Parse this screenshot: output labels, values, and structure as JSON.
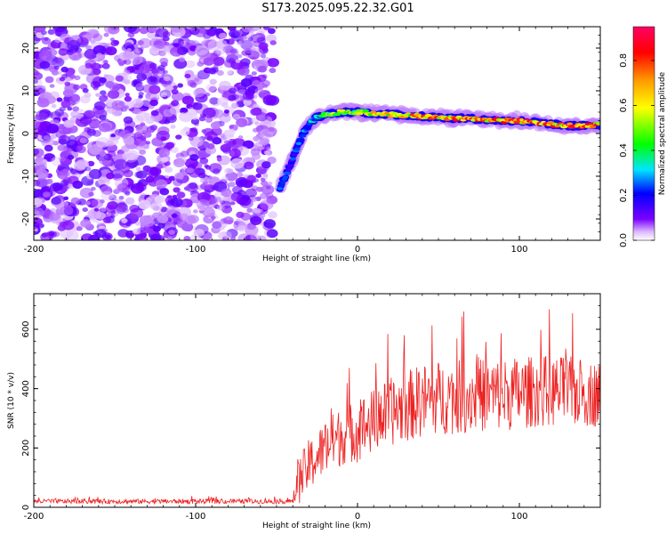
{
  "title": "S173.2025.095.22.32.G01",
  "colors": {
    "noise": "#8a3cff",
    "snr_line": "#ee2222",
    "axis": "#000000",
    "colorbar_stops": [
      "#ffffff",
      "#dcb8ff",
      "#7a00ff",
      "#0000ff",
      "#00e5ff",
      "#00ff00",
      "#ffff00",
      "#ff9900",
      "#ff0000",
      "#ff0066"
    ]
  },
  "chart_data": [
    {
      "type": "heatmap",
      "xlabel": "Height of straight line (km)",
      "ylabel": "Frequency (Hz)",
      "xlim": [
        -200,
        150
      ],
      "ylim": [
        -25,
        25
      ],
      "xticks": [
        -200,
        -100,
        0,
        100
      ],
      "yticks": [
        -20,
        -10,
        0,
        10,
        20
      ],
      "colorbar": {
        "label": "Normalized spectral amplitude",
        "range": [
          0,
          0.95
        ],
        "ticks": [
          "0.0",
          "0.2",
          "0.4",
          "0.6",
          "0.8"
        ],
        "tick_values": [
          0,
          0.2,
          0.4,
          0.6,
          0.8
        ]
      },
      "noise_region": {
        "x_range": [
          -200,
          -52
        ],
        "amplitude": 0.12
      },
      "signal_ridge": [
        {
          "x": -48,
          "f": -12.5,
          "a": 0.3
        },
        {
          "x": -44,
          "f": -9.5,
          "a": 0.25
        },
        {
          "x": -40,
          "f": -6.0,
          "a": 0.25
        },
        {
          "x": -36,
          "f": -2.0,
          "a": 0.3
        },
        {
          "x": -32,
          "f": 1.0,
          "a": 0.3
        },
        {
          "x": -28,
          "f": 3.0,
          "a": 0.35
        },
        {
          "x": -24,
          "f": 4.0,
          "a": 0.4
        },
        {
          "x": -18,
          "f": 4.5,
          "a": 0.55
        },
        {
          "x": -10,
          "f": 5.0,
          "a": 0.6
        },
        {
          "x": 0,
          "f": 5.0,
          "a": 0.65
        },
        {
          "x": 10,
          "f": 4.7,
          "a": 0.7
        },
        {
          "x": 20,
          "f": 4.5,
          "a": 0.75
        },
        {
          "x": 30,
          "f": 4.2,
          "a": 0.78
        },
        {
          "x": 40,
          "f": 4.0,
          "a": 0.8
        },
        {
          "x": 50,
          "f": 3.8,
          "a": 0.82
        },
        {
          "x": 60,
          "f": 3.6,
          "a": 0.84
        },
        {
          "x": 70,
          "f": 3.5,
          "a": 0.85
        },
        {
          "x": 80,
          "f": 3.2,
          "a": 0.86
        },
        {
          "x": 90,
          "f": 3.0,
          "a": 0.87
        },
        {
          "x": 100,
          "f": 3.0,
          "a": 0.88
        },
        {
          "x": 110,
          "f": 2.6,
          "a": 0.89
        },
        {
          "x": 120,
          "f": 2.2,
          "a": 0.9
        },
        {
          "x": 130,
          "f": 1.8,
          "a": 0.9
        },
        {
          "x": 140,
          "f": 1.8,
          "a": 0.9
        },
        {
          "x": 150,
          "f": 2.0,
          "a": 0.88
        }
      ]
    },
    {
      "type": "line",
      "xlabel": "Height of straight line (km)",
      "ylabel": "SNR (10 * v/v)",
      "xlim": [
        -200,
        150
      ],
      "ylim": [
        0,
        720
      ],
      "xticks": [
        -200,
        -100,
        0,
        100
      ],
      "yticks": [
        0,
        200,
        400,
        600
      ],
      "series": [
        {
          "x": [
            -200,
            -150,
            -100,
            -60,
            -40,
            -38,
            -35,
            -30,
            -25,
            -20,
            -15,
            -10,
            -5,
            0,
            10,
            20,
            30,
            40,
            50,
            60,
            70,
            80,
            90,
            100,
            110,
            120,
            130,
            140,
            150
          ],
          "y": [
            20,
            20,
            20,
            20,
            20,
            60,
            100,
            140,
            170,
            200,
            220,
            240,
            250,
            260,
            290,
            320,
            340,
            360,
            370,
            370,
            375,
            380,
            380,
            385,
            390,
            390,
            390,
            385,
            380
          ],
          "spread": [
            8,
            8,
            8,
            8,
            8,
            60,
            80,
            90,
            90,
            95,
            100,
            100,
            100,
            110,
            110,
            115,
            120,
            125,
            125,
            125,
            125,
            125,
            125,
            125,
            120,
            120,
            120,
            115,
            110
          ]
        }
      ]
    }
  ]
}
